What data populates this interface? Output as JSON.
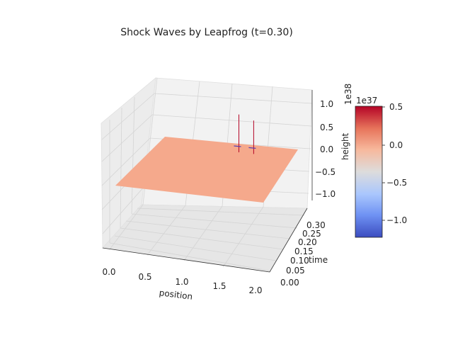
{
  "chart_data": {
    "type": "surface",
    "title": "Shock Waves by Leapfrog (t=0.30)",
    "xlabel": "position",
    "ylabel": "time",
    "zlabel": "height",
    "z_offset_label": "1e38",
    "x_ticks": [
      "0.0",
      "0.5",
      "1.0",
      "1.5",
      "2.0"
    ],
    "y_ticks": [
      "0.00",
      "0.05",
      "0.10",
      "0.15",
      "0.20",
      "0.25",
      "0.30"
    ],
    "z_ticks": [
      "1.0",
      "0.5",
      "0.0",
      "−0.5",
      "−1.0"
    ],
    "xlim": [
      0,
      2
    ],
    "ylim": [
      0,
      0.3
    ],
    "zlim": [
      -1.2e+38,
      1.2e+38
    ],
    "surface_value": 0,
    "spikes": [
      {
        "position": 1.0,
        "time": 0.3,
        "height": 7e+37
      },
      {
        "position": 1.2,
        "time": 0.3,
        "height": 6e+37
      }
    ],
    "grid": true,
    "colormap": "coolwarm",
    "surface_color": "#f5a98c",
    "spike_color": "#b40426",
    "colorbar": {
      "offset_label": "1e37",
      "ticks": [
        "0.5",
        "0.0",
        "−0.5",
        "−1.0"
      ],
      "range": [
        -1.2,
        0.5
      ],
      "colors": [
        "#3b4cc0",
        "#6f92f3",
        "#aac7fd",
        "#dddcdc",
        "#f7b89c",
        "#e7745b",
        "#b40426"
      ]
    }
  }
}
